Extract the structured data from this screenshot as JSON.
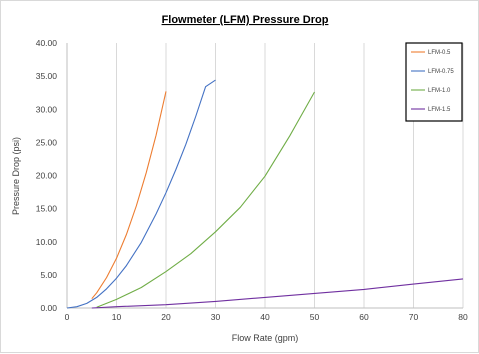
{
  "chart_data": {
    "type": "line",
    "title": "Flowmeter (LFM) Pressure Drop",
    "xlabel": "Flow Rate (gpm)",
    "ylabel": "Pressure Drop (psi)",
    "xlim": [
      0,
      80
    ],
    "ylim": [
      0,
      40
    ],
    "x_ticks": [
      "0",
      "10",
      "20",
      "30",
      "40",
      "50",
      "60",
      "70",
      "80"
    ],
    "y_ticks": [
      "0.00",
      "5.00",
      "10.00",
      "15.00",
      "20.00",
      "25.00",
      "30.00",
      "35.00",
      "40.00"
    ],
    "grid": "vertical",
    "legend_position": "top-right",
    "series": [
      {
        "name": "LFM-0.5",
        "color": "#ed7d31",
        "x": [
          5,
          6,
          8,
          10,
          12,
          14,
          16,
          18,
          20
        ],
        "y": [
          1.4,
          2.3,
          4.6,
          7.5,
          11.1,
          15.4,
          20.4,
          26.1,
          32.7
        ]
      },
      {
        "name": "LFM-0.75",
        "color": "#4472c4",
        "x": [
          0,
          2,
          4,
          6,
          8,
          10,
          12,
          15,
          18,
          20,
          22,
          24,
          26,
          28,
          30
        ],
        "y": [
          0.0,
          0.2,
          0.7,
          1.6,
          2.9,
          4.5,
          6.4,
          9.9,
          14.2,
          17.4,
          20.9,
          24.7,
          28.9,
          33.4,
          34.4
        ]
      },
      {
        "name": "LFM-1.0",
        "color": "#70ad47",
        "x": [
          6,
          10,
          15,
          20,
          25,
          30,
          35,
          40,
          45,
          50
        ],
        "y": [
          0.1,
          1.3,
          3.1,
          5.5,
          8.2,
          11.5,
          15.2,
          19.9,
          26.0,
          32.6
        ]
      },
      {
        "name": "LFM-1.5",
        "color": "#7030a0",
        "x": [
          5,
          10,
          20,
          30,
          40,
          50,
          60,
          70,
          80
        ],
        "y": [
          0.0,
          0.2,
          0.5,
          1.0,
          1.6,
          2.2,
          2.8,
          3.6,
          4.4
        ]
      }
    ]
  }
}
